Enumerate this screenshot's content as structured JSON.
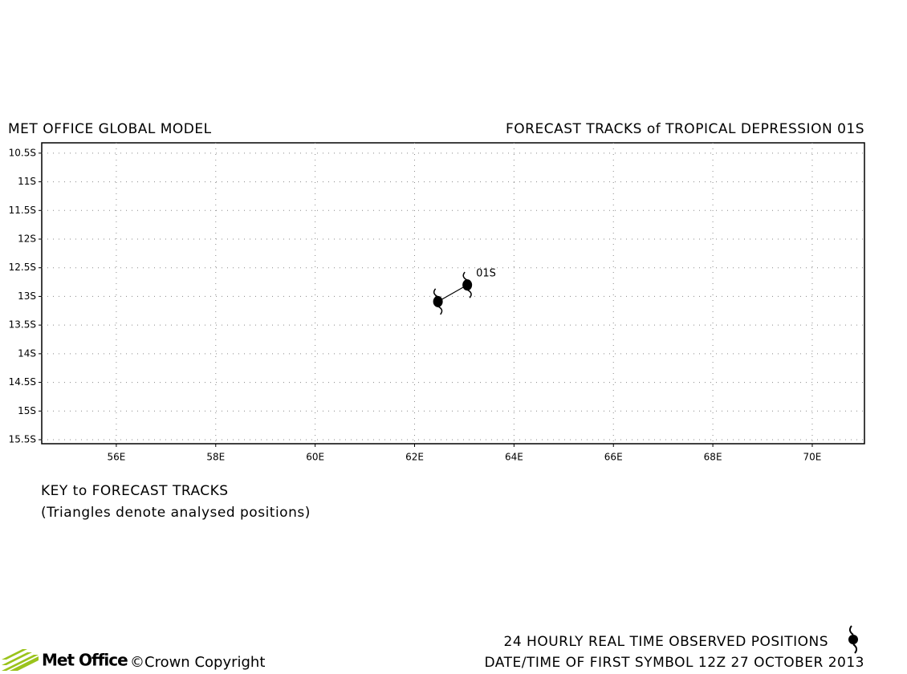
{
  "chart_data": {
    "type": "track",
    "model": "MET OFFICE GLOBAL MODEL",
    "title": "FORECAST TRACKS of TROPICAL DEPRESSION 01S",
    "key_title": "KEY to FORECAST TRACKS",
    "key_note": "(Triangles denote analysed positions)",
    "observed_note": "24 HOURLY REAL TIME OBSERVED POSITIONS",
    "first_symbol": "DATE/TIME OF FIRST SYMBOL 12Z 27 OCTOBER 2013",
    "logo": "Met Office",
    "copyright": "©Crown Copyright",
    "xlim": [
      54.5,
      71.05
    ],
    "ylim": [
      -15.57,
      -10.32
    ],
    "xticks": [
      {
        "value": 56,
        "label": "56E"
      },
      {
        "value": 58,
        "label": "58E"
      },
      {
        "value": 60,
        "label": "60E"
      },
      {
        "value": 62,
        "label": "62E"
      },
      {
        "value": 64,
        "label": "64E"
      },
      {
        "value": 66,
        "label": "66E"
      },
      {
        "value": 68,
        "label": "68E"
      },
      {
        "value": 70,
        "label": "70E"
      }
    ],
    "yticks": [
      {
        "value": -10.5,
        "label": "10.5S"
      },
      {
        "value": -11,
        "label": "11S"
      },
      {
        "value": -11.5,
        "label": "11.5S"
      },
      {
        "value": -12,
        "label": "12S"
      },
      {
        "value": -12.5,
        "label": "12.5S"
      },
      {
        "value": -13,
        "label": "13S"
      },
      {
        "value": -13.5,
        "label": "13.5S"
      },
      {
        "value": -14,
        "label": "14S"
      },
      {
        "value": -14.5,
        "label": "14.5S"
      },
      {
        "value": -15,
        "label": "15S"
      },
      {
        "value": -15.5,
        "label": "15.5S"
      }
    ],
    "grid": true,
    "series": [
      {
        "name": "01S",
        "color": "#000000",
        "x": [
          62.47,
          63.06
        ],
        "values": [
          -13.09,
          -12.8
        ]
      }
    ]
  }
}
